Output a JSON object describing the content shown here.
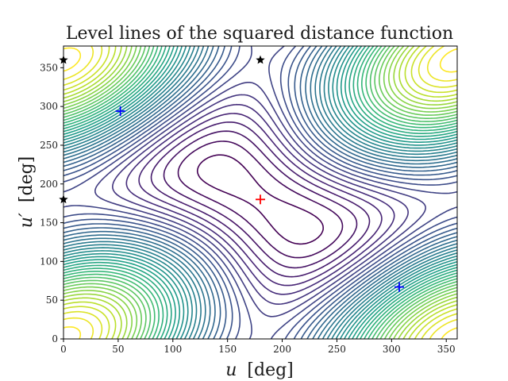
{
  "chart_data": {
    "type": "contour",
    "title": "Level lines of the squared distance function",
    "xlabel_var": "u",
    "xlabel_unit": "[deg]",
    "ylabel_var": "u′",
    "ylabel_unit": "[deg]",
    "xlim": [
      0,
      360
    ],
    "ylim": [
      0,
      378
    ],
    "xticks": [
      0,
      50,
      100,
      150,
      200,
      250,
      300,
      350
    ],
    "yticks": [
      0,
      50,
      100,
      150,
      200,
      250,
      300,
      350
    ],
    "grid": false,
    "colormap": "viridis",
    "contour_color_low": "#440154",
    "contour_color_high": "#fde725",
    "level_count": 40,
    "maximum": {
      "x": 180,
      "y": 180,
      "color": "#ff0000",
      "marker": "plus"
    },
    "minima": [
      {
        "x": 52,
        "y": 294,
        "color": "#0000ff",
        "marker": "plus"
      },
      {
        "x": 307,
        "y": 67,
        "color": "#0000ff",
        "marker": "plus"
      }
    ],
    "singular_points": [
      {
        "x": 0,
        "y": 360,
        "color": "#000000",
        "marker": "star"
      },
      {
        "x": 180,
        "y": 360,
        "color": "#000000",
        "marker": "star"
      },
      {
        "x": 0,
        "y": 180,
        "color": "#000000",
        "marker": "star"
      }
    ]
  }
}
